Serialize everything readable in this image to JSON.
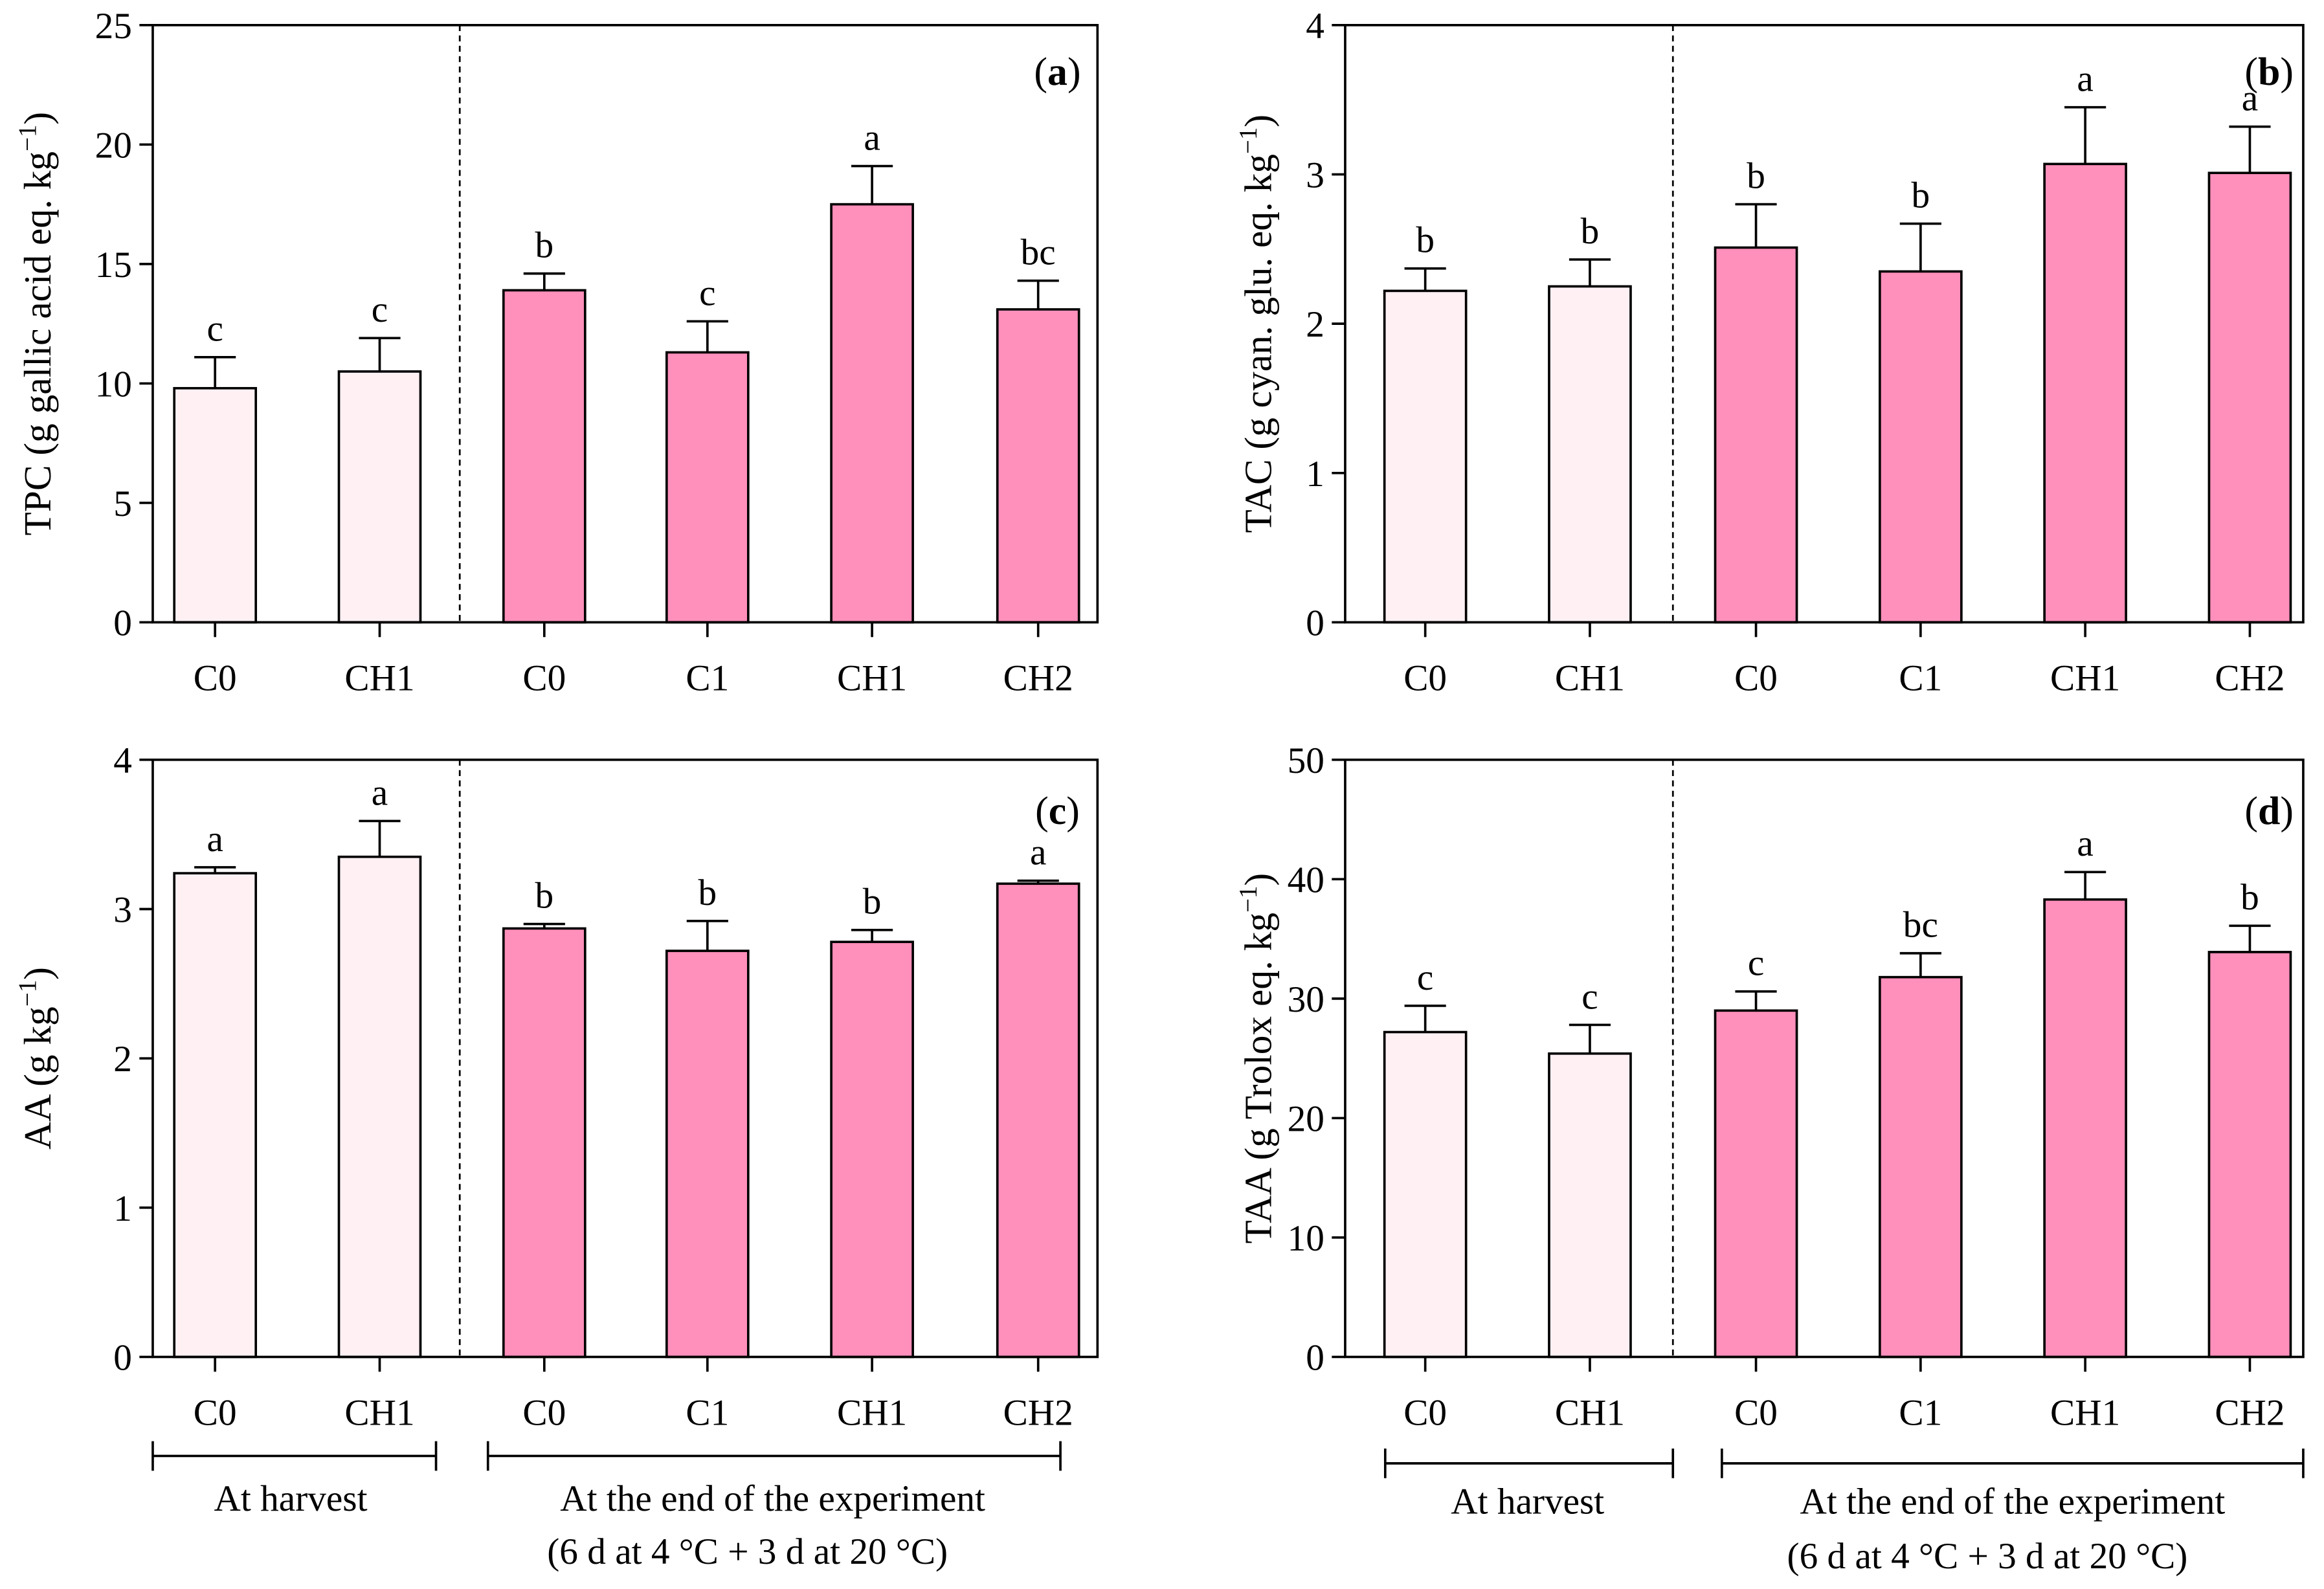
{
  "chart_data": [
    {
      "type": "bar",
      "tag": {
        "open": "(",
        "letter": "a",
        "close": ")"
      },
      "ylabel": {
        "text": "TPC (g gallic acid eq. kg",
        "sup": "−1",
        "close": ")"
      },
      "ylim": [
        0,
        25
      ],
      "yticks": [
        0,
        5,
        10,
        15,
        20,
        25
      ],
      "groups": [
        {
          "categories": [
            "C0",
            "CH1"
          ],
          "values": [
            9.8,
            10.5
          ],
          "errors": [
            1.3,
            1.4
          ],
          "letters": [
            "c",
            "c"
          ],
          "color": "#fff0f4"
        },
        {
          "categories": [
            "C0",
            "C1",
            "CH1",
            "CH2"
          ],
          "values": [
            13.9,
            11.3,
            17.5,
            13.1
          ],
          "errors": [
            0.7,
            1.3,
            1.6,
            1.2
          ],
          "letters": [
            "b",
            "c",
            "a",
            "bc"
          ],
          "color": "#ff8fbb"
        }
      ]
    },
    {
      "type": "bar",
      "tag": {
        "open": "(",
        "letter": "b",
        "close": ")"
      },
      "ylabel": {
        "text": "TAC (g cyan. glu. eq. kg",
        "sup": "−1",
        "close": ")"
      },
      "ylim": [
        0,
        4
      ],
      "yticks": [
        0,
        1,
        2,
        3,
        4
      ],
      "groups": [
        {
          "categories": [
            "C0",
            "CH1"
          ],
          "values": [
            2.22,
            2.25
          ],
          "errors": [
            0.15,
            0.18
          ],
          "letters": [
            "b",
            "b"
          ],
          "color": "#fff0f4"
        },
        {
          "categories": [
            "C0",
            "C1",
            "CH1",
            "CH2"
          ],
          "values": [
            2.51,
            2.35,
            3.07,
            3.01
          ],
          "errors": [
            0.29,
            0.32,
            0.38,
            0.31
          ],
          "letters": [
            "b",
            "b",
            "a",
            "a"
          ],
          "color": "#ff8fbb"
        }
      ]
    },
    {
      "type": "bar",
      "tag": {
        "open": "(",
        "letter": "c",
        "close": ")"
      },
      "ylabel": {
        "text": "AA (g kg",
        "sup": "−1",
        "close": ")"
      },
      "ylim": [
        0,
        4
      ],
      "yticks": [
        0,
        1,
        2,
        3,
        4
      ],
      "groups": [
        {
          "categories": [
            "C0",
            "CH1"
          ],
          "values": [
            3.24,
            3.35
          ],
          "errors": [
            0.04,
            0.24
          ],
          "letters": [
            "a",
            "a"
          ],
          "color": "#fff0f4"
        },
        {
          "categories": [
            "C0",
            "C1",
            "CH1",
            "CH2"
          ],
          "values": [
            2.87,
            2.72,
            2.78,
            3.17
          ],
          "errors": [
            0.03,
            0.2,
            0.08,
            0.02
          ],
          "letters": [
            "b",
            "b",
            "b",
            "a"
          ],
          "color": "#ff8fbb"
        }
      ]
    },
    {
      "type": "bar",
      "tag": {
        "open": "(",
        "letter": "d",
        "close": ")"
      },
      "ylabel": {
        "text": "TAA (g Trolox eq. kg",
        "sup": "−1",
        "close": ")"
      },
      "ylim": [
        0,
        50
      ],
      "yticks": [
        0,
        10,
        20,
        30,
        40,
        50
      ],
      "groups": [
        {
          "categories": [
            "C0",
            "CH1"
          ],
          "values": [
            27.2,
            25.4
          ],
          "errors": [
            2.2,
            2.4
          ],
          "letters": [
            "c",
            "c"
          ],
          "color": "#fff0f4"
        },
        {
          "categories": [
            "C0",
            "C1",
            "CH1",
            "CH2"
          ],
          "values": [
            29.0,
            31.8,
            38.3,
            33.9
          ],
          "errors": [
            1.6,
            2.0,
            2.3,
            2.2
          ],
          "letters": [
            "c",
            "bc",
            "a",
            "b"
          ],
          "color": "#ff8fbb"
        }
      ]
    }
  ],
  "group_labels": {
    "harvest": "At harvest",
    "end": "At the end of the experiment",
    "end_detail": "(6 d at 4 °C + 3 d at 20 °C)"
  }
}
